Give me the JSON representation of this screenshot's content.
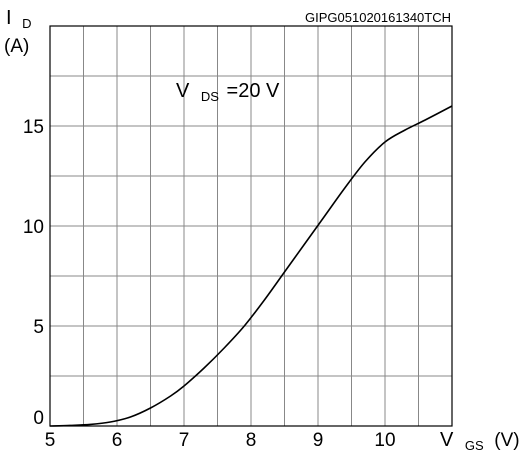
{
  "chart_data": {
    "type": "line",
    "figure_code": "GIPG051020161340TCH",
    "annotation": {
      "symbol": "V",
      "subscript": "DS",
      "value": "=20 V"
    },
    "xaxis": {
      "symbol": "V",
      "subscript": "GS",
      "unit": "(V)",
      "ticks": [
        "5",
        "6",
        "7",
        "8",
        "9",
        "10"
      ],
      "range": [
        5,
        11
      ]
    },
    "yaxis": {
      "symbol": "I",
      "subscript": "D",
      "unit": "(A)",
      "ticks": [
        "0",
        "5",
        "10",
        "15"
      ],
      "range": [
        0,
        20
      ]
    },
    "grid": true,
    "series": [
      {
        "x": [
          5.0,
          5.3,
          5.6,
          5.9,
          6.2,
          6.5,
          6.8,
          7.0,
          7.3,
          7.6,
          7.9,
          8.2,
          8.5,
          8.8,
          9.1,
          9.4,
          9.7,
          10.0,
          10.3,
          10.6,
          11.0
        ],
        "y": [
          0.0,
          0.03,
          0.08,
          0.2,
          0.45,
          0.9,
          1.5,
          2.0,
          2.9,
          3.9,
          5.0,
          6.3,
          7.7,
          9.1,
          10.5,
          11.9,
          13.2,
          14.2,
          14.8,
          15.3,
          16.0
        ]
      }
    ]
  }
}
